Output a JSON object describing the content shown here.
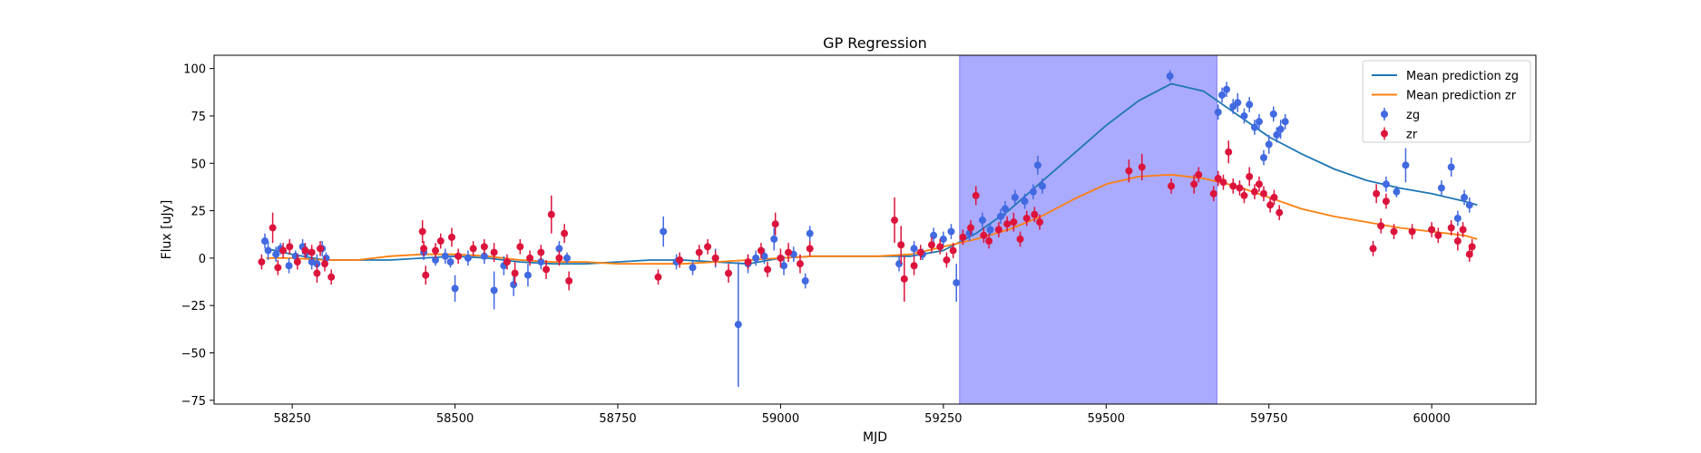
{
  "chart_data": {
    "type": "scatter",
    "title": "GP Regression",
    "xlabel": "MJD",
    "ylabel": "Flux [uJy]",
    "xlim": [
      58130,
      60160
    ],
    "ylim": [
      -77,
      107
    ],
    "xticks": [
      58250,
      58500,
      58750,
      59000,
      59250,
      59500,
      59750,
      60000
    ],
    "yticks": [
      -75,
      -50,
      -25,
      0,
      25,
      50,
      75,
      100
    ],
    "legend_position": "upper-right",
    "highlight_span": {
      "x0": 59275,
      "x1": 59670,
      "color": "#aaaaff"
    },
    "series": [
      {
        "name": "Mean prediction zg",
        "kind": "line",
        "color": "#1f77b4",
        "x": [
          58210,
          58250,
          58300,
          58350,
          58400,
          58450,
          58500,
          58550,
          58600,
          58650,
          58700,
          58750,
          58800,
          58850,
          58900,
          58950,
          59000,
          59050,
          59100,
          59150,
          59200,
          59250,
          59300,
          59350,
          59400,
          59450,
          59500,
          59550,
          59600,
          59650,
          59700,
          59750,
          59800,
          59850,
          59900,
          59950,
          60000,
          60050,
          60070
        ],
        "y": [
          5,
          2,
          -1,
          -1,
          -1,
          0,
          1,
          0,
          -2,
          -3,
          -3,
          -2,
          -1,
          -1,
          -2,
          -3,
          0,
          1,
          1,
          1,
          1,
          4,
          13,
          25,
          40,
          55,
          70,
          83,
          92,
          88,
          76,
          64,
          55,
          47,
          41,
          37,
          34,
          30,
          28
        ]
      },
      {
        "name": "Mean prediction zr",
        "kind": "line",
        "color": "#ff7f0e",
        "x": [
          58210,
          58250,
          58300,
          58350,
          58400,
          58450,
          58500,
          58550,
          58600,
          58650,
          58700,
          58750,
          58800,
          58850,
          58900,
          58950,
          59000,
          59050,
          59100,
          59150,
          59200,
          59250,
          59300,
          59350,
          59400,
          59450,
          59500,
          59550,
          59600,
          59650,
          59700,
          59750,
          59800,
          59850,
          59900,
          59950,
          60000,
          60050,
          60070
        ],
        "y": [
          0,
          0,
          -1,
          -1,
          1,
          2,
          2,
          1,
          -1,
          -2,
          -2,
          -3,
          -3,
          -3,
          -2,
          -1,
          0,
          1,
          1,
          1,
          2,
          6,
          10,
          15,
          22,
          31,
          39,
          43,
          44,
          42,
          38,
          32,
          26,
          22,
          19,
          16,
          14,
          12,
          10
        ]
      },
      {
        "name": "zg",
        "kind": "errorbar",
        "color": "#4169e1",
        "points": [
          [
            58208,
            9,
            4
          ],
          [
            58213,
            4,
            5
          ],
          [
            58225,
            2,
            4
          ],
          [
            58232,
            5,
            3
          ],
          [
            58245,
            -4,
            4
          ],
          [
            58255,
            1,
            3
          ],
          [
            58266,
            6,
            4
          ],
          [
            58272,
            3,
            3
          ],
          [
            58280,
            -2,
            4
          ],
          [
            58288,
            -3,
            5
          ],
          [
            58296,
            5,
            4
          ],
          [
            58302,
            0,
            3
          ],
          [
            58452,
            3,
            4
          ],
          [
            58470,
            -1,
            3
          ],
          [
            58485,
            1,
            4
          ],
          [
            58493,
            -2,
            3
          ],
          [
            58500,
            -16,
            7
          ],
          [
            58520,
            0,
            4
          ],
          [
            58545,
            1,
            4
          ],
          [
            58560,
            -17,
            10
          ],
          [
            58575,
            -4,
            5
          ],
          [
            58590,
            -14,
            6
          ],
          [
            58612,
            -9,
            6
          ],
          [
            58632,
            -2,
            4
          ],
          [
            58660,
            5,
            4
          ],
          [
            58672,
            0,
            3
          ],
          [
            58820,
            14,
            8
          ],
          [
            58840,
            -2,
            4
          ],
          [
            58865,
            -5,
            4
          ],
          [
            58900,
            0,
            5
          ],
          [
            58935,
            -35,
            33
          ],
          [
            58950,
            -3,
            5
          ],
          [
            58962,
            0,
            4
          ],
          [
            58975,
            1,
            4
          ],
          [
            58990,
            10,
            6
          ],
          [
            59005,
            -4,
            5
          ],
          [
            59020,
            2,
            4
          ],
          [
            59038,
            -12,
            4
          ],
          [
            59045,
            13,
            4
          ],
          [
            59182,
            -3,
            4
          ],
          [
            59205,
            5,
            4
          ],
          [
            59218,
            2,
            3
          ],
          [
            59235,
            12,
            4
          ],
          [
            59250,
            10,
            4
          ],
          [
            59262,
            14,
            4
          ],
          [
            59270,
            -13,
            10
          ],
          [
            59290,
            13,
            4
          ],
          [
            59310,
            20,
            4
          ],
          [
            59322,
            15,
            3
          ],
          [
            59338,
            22,
            4
          ],
          [
            59345,
            26,
            4
          ],
          [
            59360,
            32,
            4
          ],
          [
            59375,
            30,
            4
          ],
          [
            59388,
            35,
            4
          ],
          [
            59395,
            49,
            5
          ],
          [
            59402,
            38,
            4
          ],
          [
            59598,
            96,
            3
          ],
          [
            59672,
            77,
            4
          ],
          [
            59678,
            86,
            4
          ],
          [
            59685,
            89,
            4
          ],
          [
            59695,
            80,
            4
          ],
          [
            59702,
            82,
            5
          ],
          [
            59712,
            75,
            4
          ],
          [
            59720,
            81,
            4
          ],
          [
            59728,
            69,
            4
          ],
          [
            59735,
            72,
            4
          ],
          [
            59742,
            53,
            4
          ],
          [
            59750,
            60,
            5
          ],
          [
            59757,
            76,
            4
          ],
          [
            59762,
            65,
            4
          ],
          [
            59768,
            68,
            5
          ],
          [
            59775,
            72,
            4
          ],
          [
            59930,
            39,
            4
          ],
          [
            59946,
            35,
            3
          ],
          [
            59960,
            49,
            9
          ],
          [
            60015,
            37,
            4
          ],
          [
            60030,
            48,
            5
          ],
          [
            60040,
            21,
            4
          ],
          [
            60050,
            32,
            4
          ],
          [
            60058,
            28,
            4
          ]
        ]
      },
      {
        "name": "zr",
        "kind": "errorbar",
        "color": "#dc143c",
        "points": [
          [
            58203,
            -2,
            4
          ],
          [
            58220,
            16,
            8
          ],
          [
            58228,
            -5,
            4
          ],
          [
            58236,
            4,
            4
          ],
          [
            58246,
            6,
            4
          ],
          [
            58258,
            -2,
            4
          ],
          [
            58270,
            4,
            4
          ],
          [
            58280,
            3,
            4
          ],
          [
            58288,
            -8,
            5
          ],
          [
            58293,
            5,
            4
          ],
          [
            58300,
            -3,
            4
          ],
          [
            58310,
            -10,
            4
          ],
          [
            58450,
            14,
            6
          ],
          [
            58452,
            5,
            4
          ],
          [
            58455,
            -9,
            5
          ],
          [
            58470,
            4,
            4
          ],
          [
            58478,
            9,
            4
          ],
          [
            58495,
            11,
            5
          ],
          [
            58505,
            1,
            4
          ],
          [
            58528,
            5,
            4
          ],
          [
            58545,
            6,
            4
          ],
          [
            58560,
            3,
            5
          ],
          [
            58580,
            -2,
            4
          ],
          [
            58592,
            -8,
            6
          ],
          [
            58600,
            6,
            4
          ],
          [
            58615,
            0,
            4
          ],
          [
            58632,
            3,
            4
          ],
          [
            58640,
            -6,
            5
          ],
          [
            58648,
            23,
            10
          ],
          [
            58660,
            0,
            4
          ],
          [
            58668,
            13,
            5
          ],
          [
            58675,
            -12,
            5
          ],
          [
            58812,
            -10,
            4
          ],
          [
            58845,
            -1,
            4
          ],
          [
            58875,
            3,
            4
          ],
          [
            58888,
            6,
            4
          ],
          [
            58900,
            0,
            4
          ],
          [
            58920,
            -8,
            5
          ],
          [
            58950,
            -2,
            4
          ],
          [
            58970,
            4,
            4
          ],
          [
            58980,
            -6,
            4
          ],
          [
            58992,
            18,
            6
          ],
          [
            59000,
            0,
            5
          ],
          [
            59012,
            3,
            5
          ],
          [
            59030,
            -3,
            5
          ],
          [
            59045,
            5,
            4
          ],
          [
            59175,
            20,
            12
          ],
          [
            59185,
            7,
            10
          ],
          [
            59190,
            -11,
            12
          ],
          [
            59205,
            -4,
            5
          ],
          [
            59215,
            3,
            4
          ],
          [
            59232,
            7,
            4
          ],
          [
            59245,
            6,
            4
          ],
          [
            59255,
            -1,
            4
          ],
          [
            59265,
            4,
            4
          ],
          [
            59280,
            11,
            4
          ],
          [
            59292,
            16,
            4
          ],
          [
            59300,
            33,
            5
          ],
          [
            59312,
            12,
            4
          ],
          [
            59320,
            9,
            4
          ],
          [
            59335,
            15,
            4
          ],
          [
            59348,
            18,
            4
          ],
          [
            59358,
            19,
            5
          ],
          [
            59368,
            10,
            4
          ],
          [
            59378,
            21,
            4
          ],
          [
            59390,
            23,
            4
          ],
          [
            59398,
            19,
            4
          ],
          [
            59535,
            46,
            6
          ],
          [
            59555,
            48,
            7
          ],
          [
            59600,
            38,
            4
          ],
          [
            59635,
            39,
            5
          ],
          [
            59642,
            44,
            4
          ],
          [
            59665,
            34,
            4
          ],
          [
            59672,
            42,
            4
          ],
          [
            59680,
            40,
            4
          ],
          [
            59688,
            56,
            6
          ],
          [
            59695,
            38,
            4
          ],
          [
            59705,
            37,
            4
          ],
          [
            59712,
            33,
            4
          ],
          [
            59720,
            43,
            5
          ],
          [
            59728,
            35,
            4
          ],
          [
            59735,
            39,
            4
          ],
          [
            59742,
            34,
            4
          ],
          [
            59752,
            28,
            4
          ],
          [
            59758,
            32,
            4
          ],
          [
            59766,
            24,
            4
          ],
          [
            59910,
            5,
            4
          ],
          [
            59915,
            34,
            5
          ],
          [
            59922,
            17,
            4
          ],
          [
            59930,
            30,
            4
          ],
          [
            59942,
            14,
            4
          ],
          [
            59970,
            14,
            4
          ],
          [
            60000,
            15,
            4
          ],
          [
            60010,
            12,
            4
          ],
          [
            60030,
            16,
            4
          ],
          [
            60040,
            9,
            5
          ],
          [
            60048,
            15,
            4
          ],
          [
            60058,
            2,
            4
          ],
          [
            60062,
            6,
            4
          ]
        ]
      }
    ]
  }
}
